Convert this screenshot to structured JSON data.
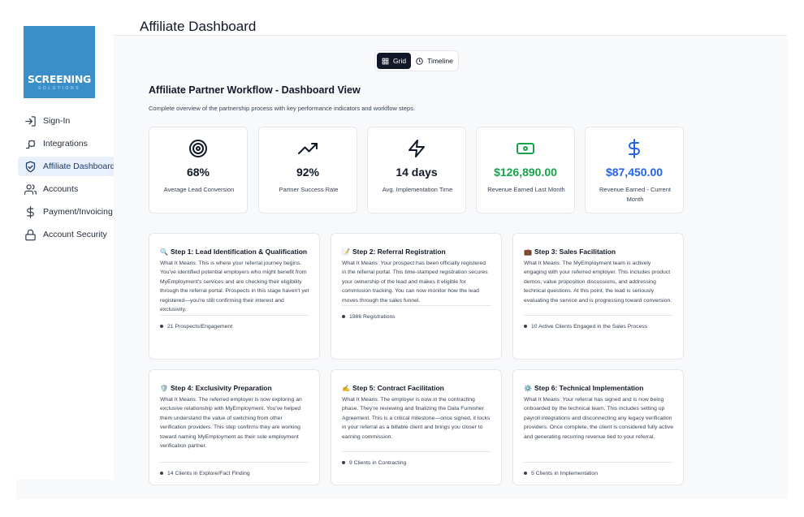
{
  "logo": {
    "main": "SCREENING",
    "sub": "SOLUTIONS"
  },
  "nav": [
    {
      "label": "Sign-In",
      "icon": "sign-in-icon",
      "active": false
    },
    {
      "label": "Integrations",
      "icon": "puzzle-icon",
      "active": false
    },
    {
      "label": "Affiliate Dashboard",
      "icon": "handshake-icon",
      "active": true
    },
    {
      "label": "Accounts",
      "icon": "users-icon",
      "active": false
    },
    {
      "label": "Payment/Invoicing",
      "icon": "dollar-icon",
      "active": false
    },
    {
      "label": "Account Security",
      "icon": "lock-icon",
      "active": false
    }
  ],
  "header": {
    "title": "Affiliate Dashboard"
  },
  "view_toggle": {
    "grid": "Grid",
    "timeline": "Timeline",
    "selected": "Grid"
  },
  "section": {
    "title": "Affiliate Partner Workflow - Dashboard View",
    "subtitle": "Complete overview of the partnership process with key performance indicators and workflow steps."
  },
  "kpis": [
    {
      "value": "68%",
      "label": "Average Lead Conversion",
      "icon": "target-icon",
      "color": "#111827"
    },
    {
      "value": "92%",
      "label": "Partner Success Rate",
      "icon": "trending-up-icon",
      "color": "#111827"
    },
    {
      "value": "14 days",
      "label": "Avg. Implementation Time",
      "icon": "zap-icon",
      "color": "#111827"
    },
    {
      "value": "$126,890.00",
      "label": "Revenue Earned Last Month",
      "icon": "banknote-icon",
      "color": "#16a34a"
    },
    {
      "value": "$87,450.00",
      "label": "Revenue Earned - Current Month",
      "icon": "dollar-sign-icon",
      "color": "#2563eb"
    }
  ],
  "steps": [
    {
      "emoji": "🔍",
      "title": "Step 1: Lead Identification & Qualification",
      "body": "What It Means: This is where your referral journey begins. You've identified potential employers who might benefit from MyEmployment's services and are checking their eligibility through the referral portal. Prospects in this stage haven't yet registered—you're still confirming their interest and exclusivity.",
      "metric": "21 Prospects/Engagement"
    },
    {
      "emoji": "📝",
      "title": "Step 2: Referral Registration",
      "body": "What It Means: Your prospect has been officially registered in the referral portal. This time-stamped registration secures your ownership of the lead and makes it eligible for commission tracking. You can now monitor how the lead moves through the sales funnel.",
      "metric": "1986 Registrations"
    },
    {
      "emoji": "💼",
      "title": "Step 3: Sales Facilitation",
      "body": "What It Means: The MyEmployment team is actively engaging with your referred employer. This includes product demos, value proposition discussions, and addressing technical questions. At this point, the lead is seriously evaluating the service and is progressing toward conversion.",
      "metric": "10 Active Clients Engaged in the Sales Process"
    },
    {
      "emoji": "🛡️",
      "title": "Step 4: Exclusivity Preparation",
      "body": "What It Means: The referred employer is now exploring an exclusive relationship with MyEmployment. You've helped them understand the value of switching from other verification providers. This step confirms they are working toward naming MyEmployment as their sole employment verification partner.",
      "metric": "14 Clients in Explore/Fact Finding"
    },
    {
      "emoji": "✍️",
      "title": "Step 5: Contract Facilitation",
      "body": "What It Means: The employer is now in the contracting phase. They're reviewing and finalizing the Data Furnisher Agreement. This is a critical milestone—once signed, it locks in your referral as a billable client and brings you closer to earning commission.",
      "metric": "9 Clients in Contracting"
    },
    {
      "emoji": "⚙️",
      "title": "Step 6: Technical Implementation",
      "body": "What It Means: Your referral has signed and is now being onboarded by the technical team. This includes setting up payroll integrations and disconnecting any legacy verification providers. Once complete, the client is considered fully active and generating recurring revenue tied to your referral.",
      "metric": "5 Clients in Implementation"
    }
  ]
}
